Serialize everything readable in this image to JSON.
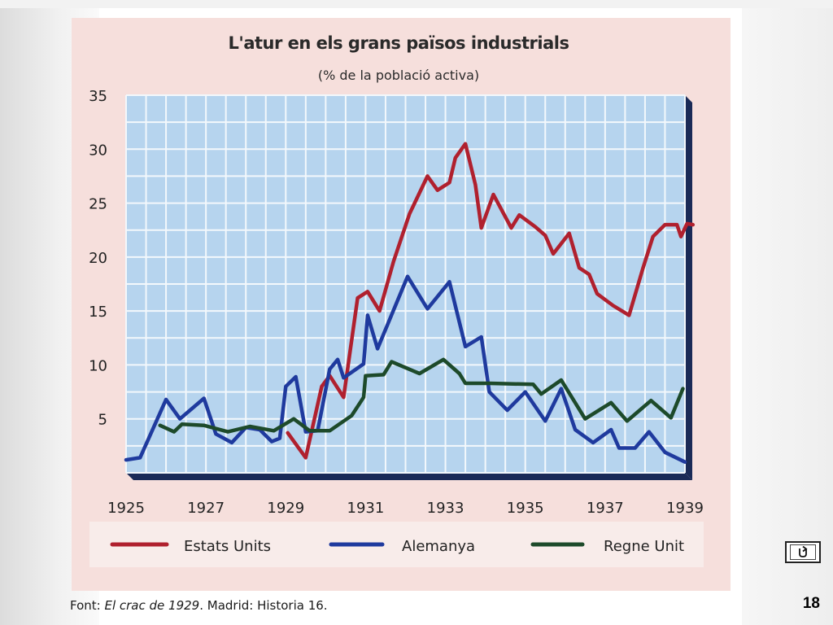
{
  "chart_data": {
    "type": "line",
    "title": "L'atur en els grans països industrials",
    "subtitle": "(% de la població activa)",
    "xlim": [
      1925,
      1939
    ],
    "ylim": [
      0,
      35
    ],
    "yticks": [
      5,
      10,
      15,
      20,
      25,
      30,
      35
    ],
    "xticks": [
      1925,
      1927,
      1929,
      1931,
      1933,
      1935,
      1937,
      1939
    ],
    "grid": true,
    "legend_position": "bottom",
    "series": [
      {
        "name": "Estats Units",
        "color": "#b0202e",
        "points": [
          [
            1929.05,
            3.7
          ],
          [
            1929.5,
            1.4
          ],
          [
            1929.9,
            8.0
          ],
          [
            1930.1,
            9.0
          ],
          [
            1930.45,
            7.0
          ],
          [
            1930.8,
            16.2
          ],
          [
            1931.05,
            16.8
          ],
          [
            1931.35,
            15.0
          ],
          [
            1931.7,
            19.6
          ],
          [
            1932.1,
            24.0
          ],
          [
            1932.55,
            27.5
          ],
          [
            1932.8,
            26.2
          ],
          [
            1933.1,
            26.9
          ],
          [
            1933.25,
            29.2
          ],
          [
            1933.5,
            30.5
          ],
          [
            1933.75,
            26.7
          ],
          [
            1933.9,
            22.7
          ],
          [
            1934.2,
            25.8
          ],
          [
            1934.65,
            22.7
          ],
          [
            1934.85,
            23.9
          ],
          [
            1935.25,
            22.8
          ],
          [
            1935.5,
            22.0
          ],
          [
            1935.7,
            20.3
          ],
          [
            1936.1,
            22.2
          ],
          [
            1936.35,
            19.0
          ],
          [
            1936.6,
            18.4
          ],
          [
            1936.8,
            16.6
          ],
          [
            1937.2,
            15.5
          ],
          [
            1937.6,
            14.6
          ],
          [
            1937.95,
            19.0
          ],
          [
            1938.2,
            21.9
          ],
          [
            1938.5,
            23.0
          ],
          [
            1938.8,
            23.0
          ],
          [
            1938.9,
            21.9
          ],
          [
            1939.05,
            23.1
          ],
          [
            1939.2,
            23.0
          ]
        ]
      },
      {
        "name": "Alemanya",
        "color": "#1f3a9e",
        "points": [
          [
            1925.0,
            1.2
          ],
          [
            1925.35,
            1.4
          ],
          [
            1926.0,
            6.8
          ],
          [
            1926.35,
            5.0
          ],
          [
            1926.95,
            6.9
          ],
          [
            1927.25,
            3.6
          ],
          [
            1927.65,
            2.8
          ],
          [
            1928.0,
            4.2
          ],
          [
            1928.35,
            4.0
          ],
          [
            1928.65,
            2.9
          ],
          [
            1928.85,
            3.2
          ],
          [
            1929.0,
            8.0
          ],
          [
            1929.25,
            8.9
          ],
          [
            1929.5,
            3.8
          ],
          [
            1929.8,
            3.9
          ],
          [
            1930.1,
            9.6
          ],
          [
            1930.3,
            10.5
          ],
          [
            1930.45,
            8.8
          ],
          [
            1930.95,
            10.1
          ],
          [
            1931.05,
            14.6
          ],
          [
            1931.3,
            11.5
          ],
          [
            1932.05,
            18.2
          ],
          [
            1932.55,
            15.2
          ],
          [
            1933.1,
            17.7
          ],
          [
            1933.5,
            11.7
          ],
          [
            1933.9,
            12.6
          ],
          [
            1934.1,
            7.5
          ],
          [
            1934.55,
            5.8
          ],
          [
            1935.0,
            7.5
          ],
          [
            1935.5,
            4.8
          ],
          [
            1935.9,
            7.8
          ],
          [
            1936.25,
            4.0
          ],
          [
            1936.7,
            2.8
          ],
          [
            1937.15,
            4.0
          ],
          [
            1937.35,
            2.3
          ],
          [
            1937.75,
            2.3
          ],
          [
            1938.1,
            3.8
          ],
          [
            1938.5,
            1.9
          ],
          [
            1939.0,
            1.0
          ]
        ]
      },
      {
        "name": "Regne Unit",
        "color": "#1d4a2a",
        "points": [
          [
            1925.85,
            4.4
          ],
          [
            1926.2,
            3.8
          ],
          [
            1926.4,
            4.5
          ],
          [
            1926.95,
            4.4
          ],
          [
            1927.55,
            3.8
          ],
          [
            1928.1,
            4.3
          ],
          [
            1928.7,
            3.9
          ],
          [
            1929.2,
            5.0
          ],
          [
            1929.6,
            3.9
          ],
          [
            1930.1,
            3.9
          ],
          [
            1930.65,
            5.3
          ],
          [
            1930.95,
            7.0
          ],
          [
            1931.0,
            9.0
          ],
          [
            1931.45,
            9.1
          ],
          [
            1931.65,
            10.3
          ],
          [
            1932.35,
            9.2
          ],
          [
            1932.95,
            10.5
          ],
          [
            1933.35,
            9.2
          ],
          [
            1933.5,
            8.3
          ],
          [
            1934.1,
            8.3
          ],
          [
            1935.2,
            8.2
          ],
          [
            1935.4,
            7.3
          ],
          [
            1935.9,
            8.6
          ],
          [
            1936.5,
            5.0
          ],
          [
            1937.15,
            6.5
          ],
          [
            1937.55,
            4.8
          ],
          [
            1938.15,
            6.7
          ],
          [
            1938.65,
            5.1
          ],
          [
            1938.95,
            7.8
          ]
        ]
      }
    ]
  },
  "source": {
    "prefix": "Font: ",
    "work": "El crac de 1929",
    "rest": ". Madrid: Historia 16."
  },
  "nav": {
    "page_number": "18",
    "back_icon": "return-arrow-icon"
  }
}
